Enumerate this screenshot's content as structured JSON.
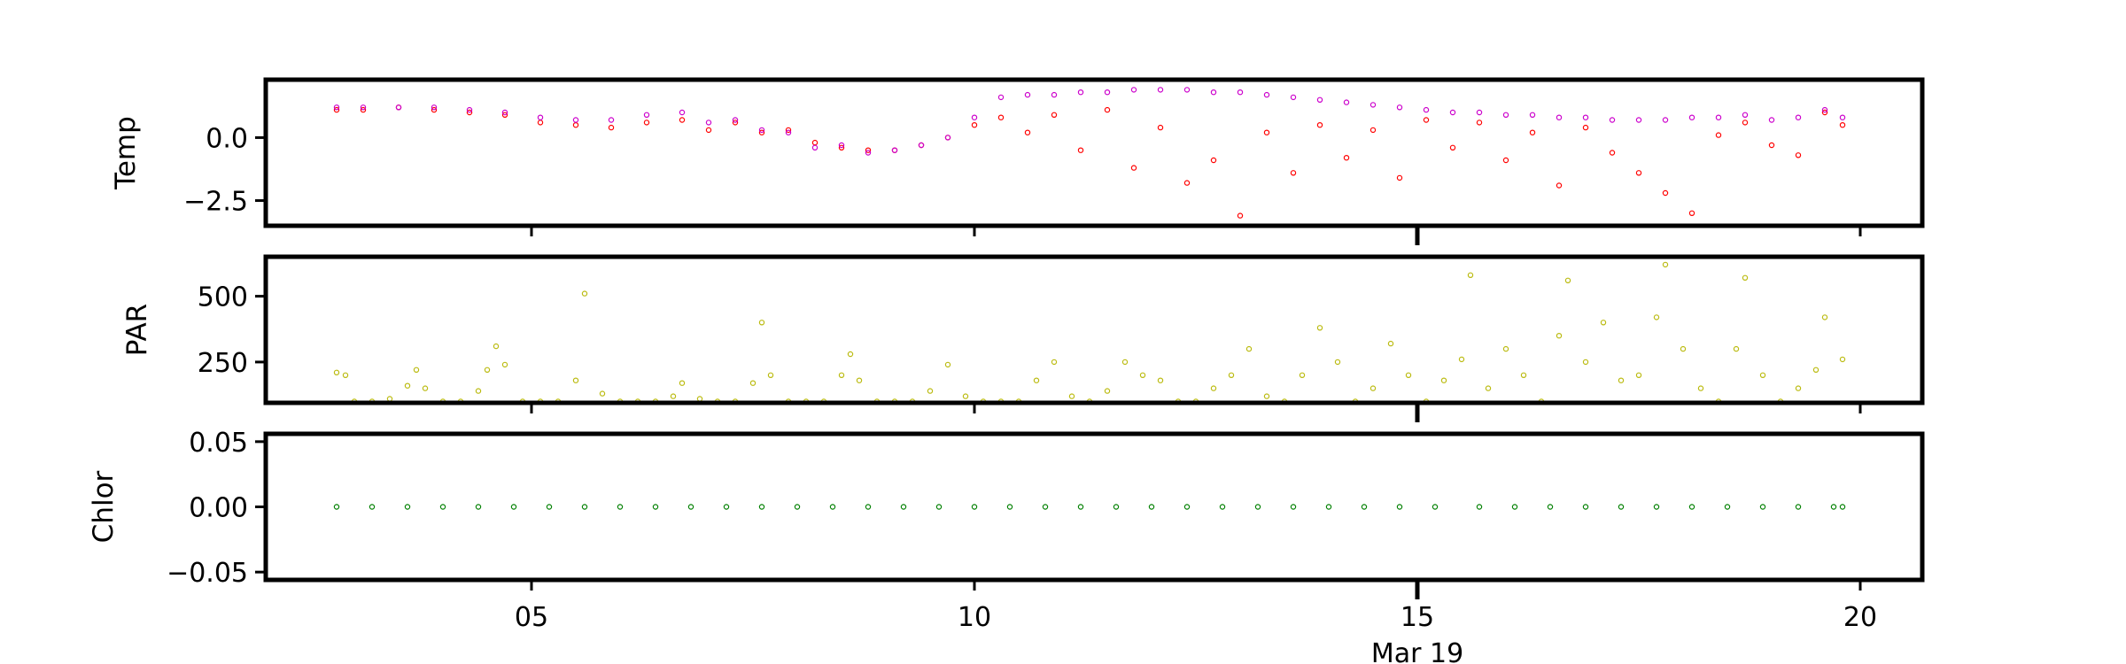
{
  "chart_data": [
    {
      "type": "scatter",
      "ylabel": "Temp",
      "xlim": [
        2.0,
        20.7
      ],
      "ylim": [
        -3.5,
        2.3
      ],
      "yticks": [
        {
          "value": 0.0,
          "label": "0.0"
        },
        {
          "value": -2.5,
          "label": "−2.5"
        }
      ],
      "series": [
        {
          "color": "#ff0000",
          "x": [
            2.8,
            3.1,
            3.5,
            3.9,
            4.3,
            4.7,
            5.1,
            5.5,
            5.9,
            6.3,
            6.7,
            7.0,
            7.3,
            7.6,
            7.9,
            8.2,
            8.5,
            8.8,
            9.1,
            9.4,
            9.7,
            10.0,
            10.3,
            10.6,
            10.9,
            11.2,
            11.5,
            11.8,
            12.1,
            12.4,
            12.7,
            13.0,
            13.3,
            13.6,
            13.9,
            14.2,
            14.5,
            14.8,
            15.1,
            15.4,
            15.7,
            16.0,
            16.3,
            16.6,
            16.9,
            17.2,
            17.5,
            17.8,
            18.1,
            18.4,
            18.7,
            19.0,
            19.3,
            19.6,
            19.8
          ],
          "y": [
            1.1,
            1.1,
            1.2,
            1.1,
            1.0,
            0.9,
            0.6,
            0.5,
            0.4,
            0.6,
            0.7,
            0.3,
            0.6,
            0.2,
            0.3,
            -0.2,
            -0.4,
            -0.5,
            -0.5,
            -0.3,
            0.0,
            0.5,
            0.8,
            0.2,
            0.9,
            -0.5,
            1.1,
            -1.2,
            0.4,
            -1.8,
            -0.9,
            -3.1,
            0.2,
            -1.4,
            0.5,
            -0.8,
            0.3,
            -1.6,
            0.7,
            -0.4,
            0.6,
            -0.9,
            0.2,
            -1.9,
            0.4,
            -0.6,
            -1.4,
            -2.2,
            -3.0,
            0.1,
            0.6,
            -0.3,
            -0.7,
            1.0,
            0.5
          ]
        },
        {
          "color": "#cc00cc",
          "x": [
            2.8,
            3.1,
            3.5,
            3.9,
            4.3,
            4.7,
            5.1,
            5.5,
            5.9,
            6.3,
            6.7,
            7.0,
            7.3,
            7.6,
            7.9,
            8.2,
            8.5,
            8.8,
            9.1,
            9.4,
            9.7,
            10.0,
            10.3,
            10.6,
            10.9,
            11.2,
            11.5,
            11.8,
            12.1,
            12.4,
            12.7,
            13.0,
            13.3,
            13.6,
            13.9,
            14.2,
            14.5,
            14.8,
            15.1,
            15.4,
            15.7,
            16.0,
            16.3,
            16.6,
            16.9,
            17.2,
            17.5,
            17.8,
            18.1,
            18.4,
            18.7,
            19.0,
            19.3,
            19.6,
            19.8
          ],
          "y": [
            1.2,
            1.2,
            1.2,
            1.2,
            1.1,
            1.0,
            0.8,
            0.7,
            0.7,
            0.9,
            1.0,
            0.6,
            0.7,
            0.3,
            0.2,
            -0.4,
            -0.3,
            -0.6,
            -0.5,
            -0.3,
            0.0,
            0.8,
            1.6,
            1.7,
            1.7,
            1.8,
            1.8,
            1.9,
            1.9,
            1.9,
            1.8,
            1.8,
            1.7,
            1.6,
            1.5,
            1.4,
            1.3,
            1.2,
            1.1,
            1.0,
            1.0,
            0.9,
            0.9,
            0.8,
            0.8,
            0.7,
            0.7,
            0.7,
            0.8,
            0.8,
            0.9,
            0.7,
            0.8,
            1.1,
            0.8
          ]
        }
      ]
    },
    {
      "type": "scatter",
      "ylabel": "PAR",
      "xlim": [
        2.0,
        20.7
      ],
      "ylim": [
        95,
        650
      ],
      "yticks": [
        {
          "value": 500,
          "label": "500"
        },
        {
          "value": 250,
          "label": "250"
        }
      ],
      "series": [
        {
          "color": "#bbbb11",
          "x": [
            2.8,
            2.9,
            3.0,
            3.2,
            3.4,
            3.6,
            3.7,
            3.8,
            4.0,
            4.2,
            4.4,
            4.5,
            4.6,
            4.7,
            4.9,
            5.1,
            5.3,
            5.5,
            5.6,
            5.8,
            6.0,
            6.2,
            6.4,
            6.6,
            6.7,
            6.9,
            7.1,
            7.3,
            7.5,
            7.6,
            7.7,
            7.9,
            8.1,
            8.3,
            8.5,
            8.6,
            8.7,
            8.9,
            9.1,
            9.3,
            9.5,
            9.7,
            9.9,
            10.1,
            10.3,
            10.5,
            10.7,
            10.9,
            11.1,
            11.3,
            11.5,
            11.7,
            11.9,
            12.1,
            12.3,
            12.5,
            12.7,
            12.9,
            13.1,
            13.3,
            13.5,
            13.7,
            13.9,
            14.1,
            14.3,
            14.5,
            14.7,
            14.9,
            15.1,
            15.3,
            15.5,
            15.6,
            15.8,
            16.0,
            16.2,
            16.4,
            16.6,
            16.7,
            16.9,
            17.1,
            17.3,
            17.5,
            17.7,
            17.8,
            18.0,
            18.2,
            18.4,
            18.6,
            18.7,
            18.9,
            19.1,
            19.3,
            19.5,
            19.6,
            19.8
          ],
          "y": [
            210,
            200,
            100,
            100,
            110,
            160,
            220,
            150,
            100,
            100,
            140,
            220,
            310,
            240,
            100,
            100,
            100,
            180,
            510,
            130,
            100,
            100,
            100,
            120,
            170,
            110,
            100,
            100,
            170,
            400,
            200,
            100,
            100,
            100,
            200,
            280,
            180,
            100,
            100,
            100,
            140,
            240,
            120,
            100,
            100,
            100,
            180,
            250,
            120,
            100,
            140,
            250,
            200,
            180,
            100,
            100,
            150,
            200,
            300,
            120,
            100,
            200,
            380,
            250,
            100,
            150,
            320,
            200,
            100,
            180,
            260,
            580,
            150,
            300,
            200,
            100,
            350,
            560,
            250,
            400,
            180,
            200,
            420,
            620,
            300,
            150,
            100,
            300,
            570,
            200,
            100,
            150,
            220,
            420,
            260
          ]
        }
      ]
    },
    {
      "type": "scatter",
      "ylabel": "Chlor",
      "xlim": [
        2.0,
        20.7
      ],
      "ylim": [
        -0.056,
        0.056
      ],
      "yticks": [
        {
          "value": 0.05,
          "label": "0.05"
        },
        {
          "value": 0.0,
          "label": "0.00"
        },
        {
          "value": -0.05,
          "label": "−0.05"
        }
      ],
      "series": [
        {
          "color": "#008000",
          "x": [
            2.8,
            3.2,
            3.6,
            4.0,
            4.4,
            4.8,
            5.2,
            5.6,
            6.0,
            6.4,
            6.8,
            7.2,
            7.6,
            8.0,
            8.4,
            8.8,
            9.2,
            9.6,
            10.0,
            10.4,
            10.8,
            11.2,
            11.6,
            12.0,
            12.4,
            12.8,
            13.2,
            13.6,
            14.0,
            14.4,
            14.8,
            15.2,
            15.7,
            16.1,
            16.5,
            16.9,
            17.3,
            17.7,
            18.1,
            18.5,
            18.9,
            19.3,
            19.7,
            19.8
          ],
          "y": [
            0,
            0,
            0,
            0,
            0,
            0,
            0,
            0,
            0,
            0,
            0,
            0,
            0,
            0,
            0,
            0,
            0,
            0,
            0,
            0,
            0,
            0,
            0,
            0,
            0,
            0,
            0,
            0,
            0,
            0,
            0,
            0,
            0,
            0,
            0,
            0,
            0,
            0,
            0,
            0,
            0,
            0,
            0,
            0
          ]
        }
      ]
    }
  ],
  "x_axis": {
    "ticks": [
      {
        "value": 5,
        "label": "05"
      },
      {
        "value": 10,
        "label": "10"
      },
      {
        "value": 15,
        "label": "15"
      },
      {
        "value": 20,
        "label": "20"
      }
    ],
    "major_tick": {
      "value": 15,
      "label": "Mar 19"
    }
  }
}
